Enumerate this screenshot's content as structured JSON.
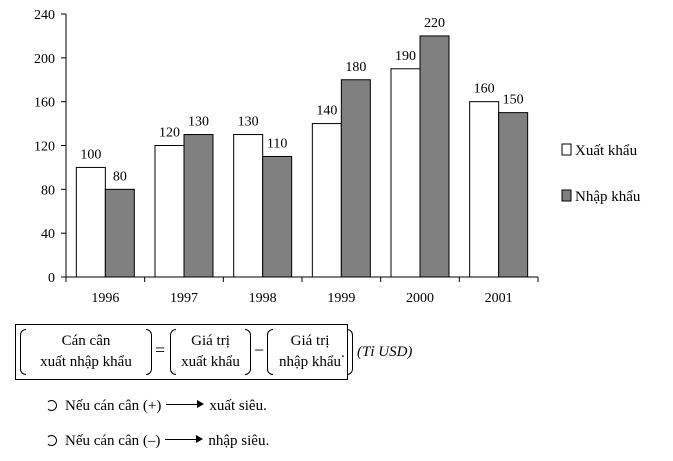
{
  "chart_data": {
    "type": "bar",
    "categories": [
      "1996",
      "1997",
      "1998",
      "1999",
      "2000",
      "2001"
    ],
    "series": [
      {
        "name": "Xuất khẩu",
        "values": [
          100,
          120,
          130,
          140,
          190,
          160
        ],
        "color": "#ffffff"
      },
      {
        "name": "Nhập khẩu",
        "values": [
          80,
          130,
          110,
          180,
          220,
          150
        ],
        "color": "#808080"
      }
    ],
    "yticks": [
      0,
      40,
      80,
      120,
      160,
      200,
      240
    ],
    "ylim": [
      0,
      240
    ],
    "title": "",
    "xlabel": "",
    "ylabel": "",
    "legend_position": "right",
    "grid": false
  },
  "formula": {
    "g1_line1": "Cán cân",
    "g1_line2": "xuất nhập khẩu",
    "eq": "=",
    "g2_line1": "Giá trị",
    "g2_line2": "xuất khẩu",
    "minus": "−",
    "g3_line1": "Giá trị",
    "g3_line2": "nhập khẩu",
    "end_dot": ".",
    "unit": "(Tỉ USD)"
  },
  "notes": [
    {
      "condition": "Nếu cán cân (+)",
      "result": "xuất siêu."
    },
    {
      "condition": "Nếu cán cân (–)",
      "result": "nhập siêu."
    }
  ]
}
